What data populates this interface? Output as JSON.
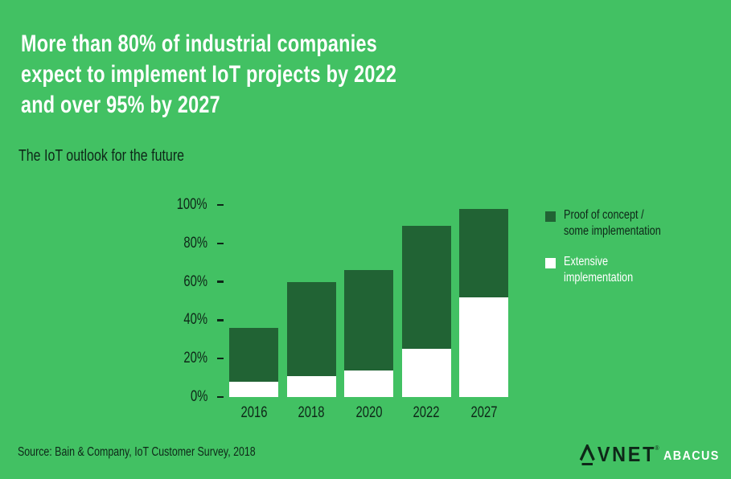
{
  "colors": {
    "background": "#42C163",
    "ink": "#0E2718",
    "bar_dark_green": "#216334",
    "bar_white": "#FFFFFF",
    "title_text": "#FFFFFF"
  },
  "title": {
    "lines": [
      "More than 80% of industrial companies",
      "expect to implement IoT projects by 2022",
      "and over 95% by 2027"
    ]
  },
  "subtitle": "The IoT outlook for the future",
  "chart_data": {
    "type": "bar",
    "stacked": true,
    "categories": [
      "2016",
      "2018",
      "2020",
      "2022",
      "2027"
    ],
    "series": [
      {
        "name": "Extensive implementation",
        "color": "#FFFFFF",
        "values": [
          8,
          11,
          14,
          25,
          52
        ]
      },
      {
        "name": "Proof of concept / some implementation",
        "color": "#216334",
        "values": [
          28,
          49,
          52,
          64,
          46
        ]
      }
    ],
    "totals": [
      36,
      60,
      66,
      89,
      98
    ],
    "yticks": [
      "0%",
      "20%",
      "40%",
      "60%",
      "80%",
      "100%"
    ],
    "ylim": [
      0,
      100
    ],
    "grid": false,
    "legend_position": "right"
  },
  "legend": [
    {
      "label": "Proof of concept / some implementation",
      "lines": [
        "Proof of concept /",
        "some implementation"
      ],
      "swatch": "#216334"
    },
    {
      "label": "Extensive implementation",
      "lines": [
        "Extensive",
        "implementation"
      ],
      "swatch": "#FFFFFF"
    }
  ],
  "source": "Source: Bain & Company, IoT Customer Survey, 2018",
  "logo": {
    "brand": "AVNET",
    "brand_rest": "VNET",
    "registered_mark": "®",
    "sub_brand": "ABACUS"
  }
}
